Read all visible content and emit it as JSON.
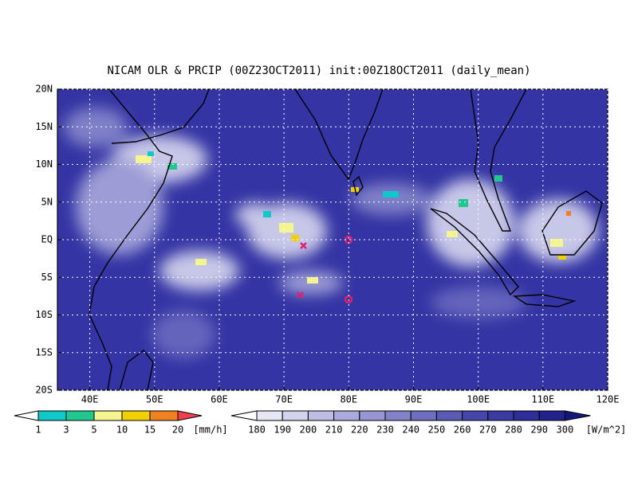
{
  "map": {
    "title": "NICAM OLR & PRCIP (00Z23OCT2011) init:00Z18OCT2011 (daily_mean)",
    "lonlim": [
      35,
      120
    ],
    "latlim": [
      -20,
      20
    ],
    "lonticks": [
      {
        "value": 40,
        "label": "40E"
      },
      {
        "value": 50,
        "label": "50E"
      },
      {
        "value": 60,
        "label": "60E"
      },
      {
        "value": 70,
        "label": "70E"
      },
      {
        "value": 80,
        "label": "80E"
      },
      {
        "value": 90,
        "label": "90E"
      },
      {
        "value": 100,
        "label": "100E"
      },
      {
        "value": 110,
        "label": "110E"
      },
      {
        "value": 120,
        "label": "120E"
      }
    ],
    "latticks": [
      {
        "value": -20,
        "label": "20S"
      },
      {
        "value": -15,
        "label": "15S"
      },
      {
        "value": -10,
        "label": "10S"
      },
      {
        "value": -5,
        "label": "5S"
      },
      {
        "value": 0,
        "label": "EQ"
      },
      {
        "value": 5,
        "label": "5N"
      },
      {
        "value": 10,
        "label": "10N"
      },
      {
        "value": 15,
        "label": "15N"
      },
      {
        "value": 20,
        "label": "20N"
      }
    ],
    "precip_colorbar": {
      "levels": [
        1,
        3,
        5,
        10,
        15,
        20
      ],
      "unit": "[mm/h]",
      "colors": [
        "#ffffff",
        "#10c8c8",
        "#20c890",
        "#f5f590",
        "#f0d000",
        "#f08020",
        "#f04050"
      ]
    },
    "olr_colorbar": {
      "levels": [
        180,
        190,
        200,
        210,
        220,
        230,
        240,
        250,
        260,
        270,
        280,
        290,
        300
      ],
      "unit": "[W/m^2]",
      "colors": [
        "#ffffff",
        "#e6e6f4",
        "#d2d2ec",
        "#bebee4",
        "#aaaadc",
        "#9696d2",
        "#8282c8",
        "#6e6ebe",
        "#5a5ab4",
        "#4646aa",
        "#3a3aa2",
        "#2e2e98",
        "#22228c",
        "#161680"
      ]
    }
  }
}
